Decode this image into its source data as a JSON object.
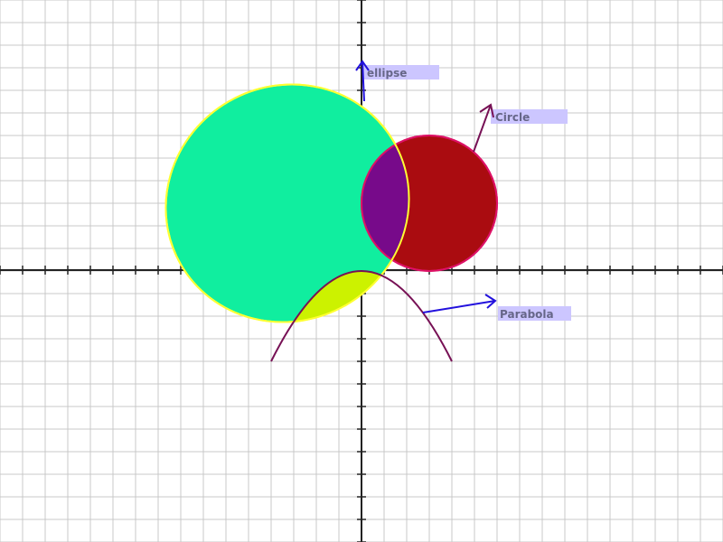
{
  "colors": {
    "background": "#ffffff",
    "grid": "#c8c8c8",
    "axis": "#222222",
    "ellipse_fill": "#10ee9f",
    "ellipse_stroke": "#ffff33",
    "circle_fill": "#aa0c10",
    "circle_stroke": "#dd1166",
    "overlap_ellipse_circle": "#770a8a",
    "overlap_ellipse_parabola": "#ccf200",
    "parabola_stroke": "#771155",
    "label_bg": "#ccc6ff",
    "label_text": "#666688",
    "arrow_blue": "#2211dd",
    "arrow_purple": "#771155"
  },
  "labels": {
    "ellipse": "ellipse",
    "circle": "Circle",
    "parabola": "Parabola"
  }
}
